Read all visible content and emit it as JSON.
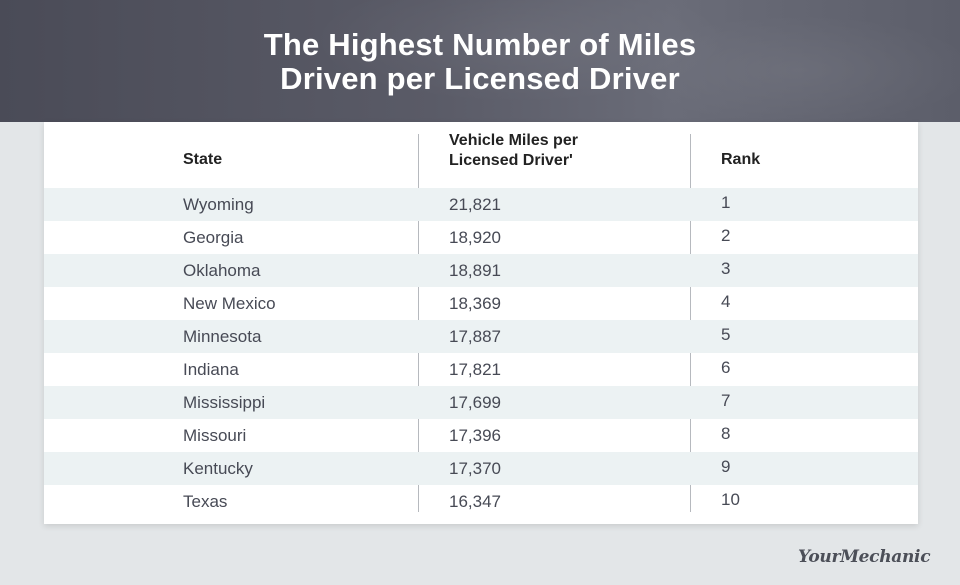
{
  "title": {
    "line1": "The Highest Number of Miles",
    "line2": "Driven per Licensed Driver"
  },
  "table": {
    "headers": {
      "state": "State",
      "miles_line1": "Vehicle Miles per",
      "miles_line2": "Licensed Driver'",
      "rank": "Rank"
    },
    "rows": [
      {
        "state": "Wyoming",
        "miles": "21,821",
        "rank": "1"
      },
      {
        "state": "Georgia",
        "miles": "18,920",
        "rank": "2"
      },
      {
        "state": "Oklahoma",
        "miles": "18,891",
        "rank": "3"
      },
      {
        "state": "New Mexico",
        "miles": "18,369",
        "rank": "4"
      },
      {
        "state": "Minnesota",
        "miles": "17,887",
        "rank": "5"
      },
      {
        "state": "Indiana",
        "miles": "17,821",
        "rank": "6"
      },
      {
        "state": "Mississippi",
        "miles": "17,699",
        "rank": "7"
      },
      {
        "state": "Missouri",
        "miles": "17,396",
        "rank": "8"
      },
      {
        "state": "Kentucky",
        "miles": "17,370",
        "rank": "9"
      },
      {
        "state": "Texas",
        "miles": "16,347",
        "rank": "10"
      }
    ]
  },
  "logo": {
    "text": "YourMechanic"
  },
  "colors": {
    "banner": "#52535f",
    "row_shade": "#ecf2f3",
    "page_bg": "#e3e6e8",
    "text": "#474a55"
  }
}
